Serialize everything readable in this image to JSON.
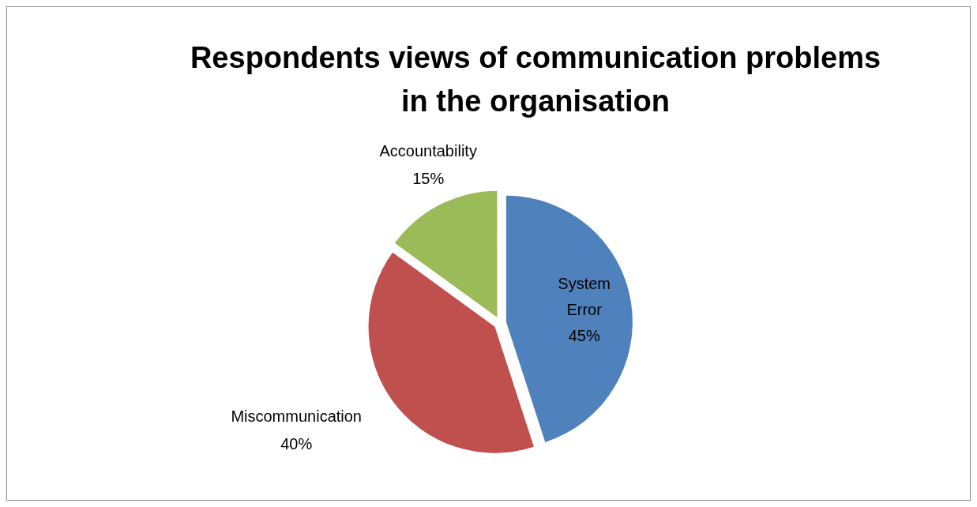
{
  "chart_data": {
    "type": "pie",
    "title": "Respondents views of communication problems in the organisation",
    "categories": [
      "System Error",
      "Miscommunication",
      "Accountability"
    ],
    "values": [
      45,
      40,
      15
    ],
    "colors": [
      "#4f81bd",
      "#c0504d",
      "#9bbb59"
    ],
    "value_labels": [
      "45%",
      "40%",
      "15%"
    ],
    "legend": false
  }
}
